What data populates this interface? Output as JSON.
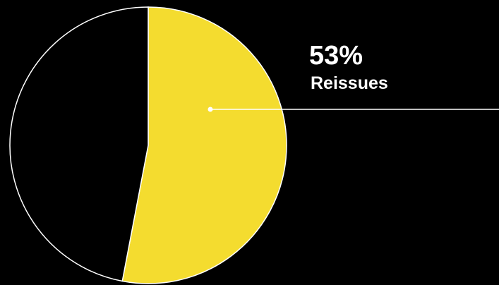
{
  "chart_data": {
    "type": "pie",
    "categories": [
      "Reissues",
      null
    ],
    "values": [
      53,
      47
    ],
    "value_labels": [
      "53%",
      null
    ],
    "colors": [
      "#f4dc2f",
      "#000000"
    ]
  }
}
